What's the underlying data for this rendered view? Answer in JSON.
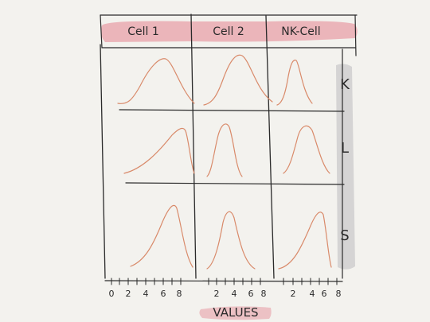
{
  "columns": [
    "Cell 1",
    "Cell 2",
    "NK-Cell"
  ],
  "rows": [
    "K",
    "L",
    "S"
  ],
  "axis": {
    "groups": [
      [
        "0",
        "2",
        "4",
        "6",
        "8"
      ],
      [
        "2",
        "4",
        "6",
        "8"
      ],
      [
        "2",
        "4",
        "6",
        "8"
      ]
    ],
    "label": "VALUES"
  },
  "colors": {
    "header_highlight": "#e8a0a8",
    "row_strip": "#cfcfcf",
    "curve": "#d98a6a",
    "ink": "#2a2a2a",
    "paper": "#f3f2ee"
  }
}
